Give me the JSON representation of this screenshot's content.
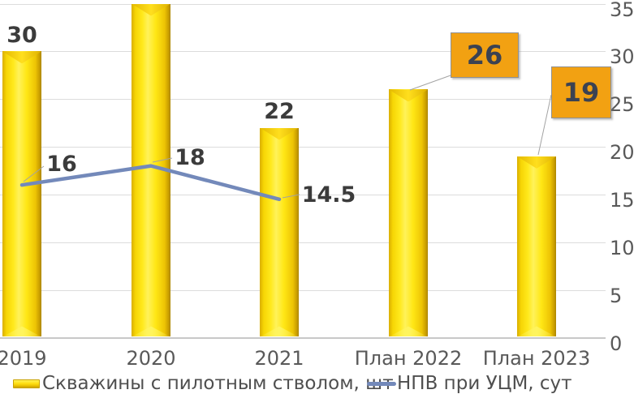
{
  "chart_data": {
    "type": "bar",
    "subtype": "combo-bar-line",
    "categories": [
      "2019",
      "2020",
      "2021",
      "План 2022",
      "План 2023"
    ],
    "series": [
      {
        "name": "Скважины с пилотным стволом, шт",
        "type": "bar",
        "color": "#FFE412",
        "values": [
          30,
          35,
          22,
          26,
          19
        ],
        "data_labels": [
          "30",
          null,
          "22",
          "26",
          "19"
        ],
        "label_style": [
          "plain",
          "cropped-out-of-view",
          "plain",
          "orange-box-callout",
          "orange-box-callout"
        ]
      },
      {
        "name": "НПВ при УЦМ, сут",
        "type": "line",
        "color": "#7389BA",
        "values": [
          16,
          18,
          14.5
        ],
        "data_labels": [
          "16",
          "18",
          "14.5"
        ]
      }
    ],
    "right_axis": {
      "tick_labels": [
        "0",
        "5",
        "10",
        "15",
        "20",
        "25",
        "30",
        "35"
      ],
      "min": 0,
      "max": 35
    },
    "grid": true,
    "legend_position": "bottom",
    "title": ""
  },
  "colors": {
    "bar_yellow": "#FFE412",
    "line_blue": "#7389BA",
    "callout_orange": "#F2A112",
    "gridline": "#DCDCDC",
    "leader_gray": "#A3A3A3",
    "data_label_text": "#3B3B3B",
    "axis_text": "#595959"
  }
}
